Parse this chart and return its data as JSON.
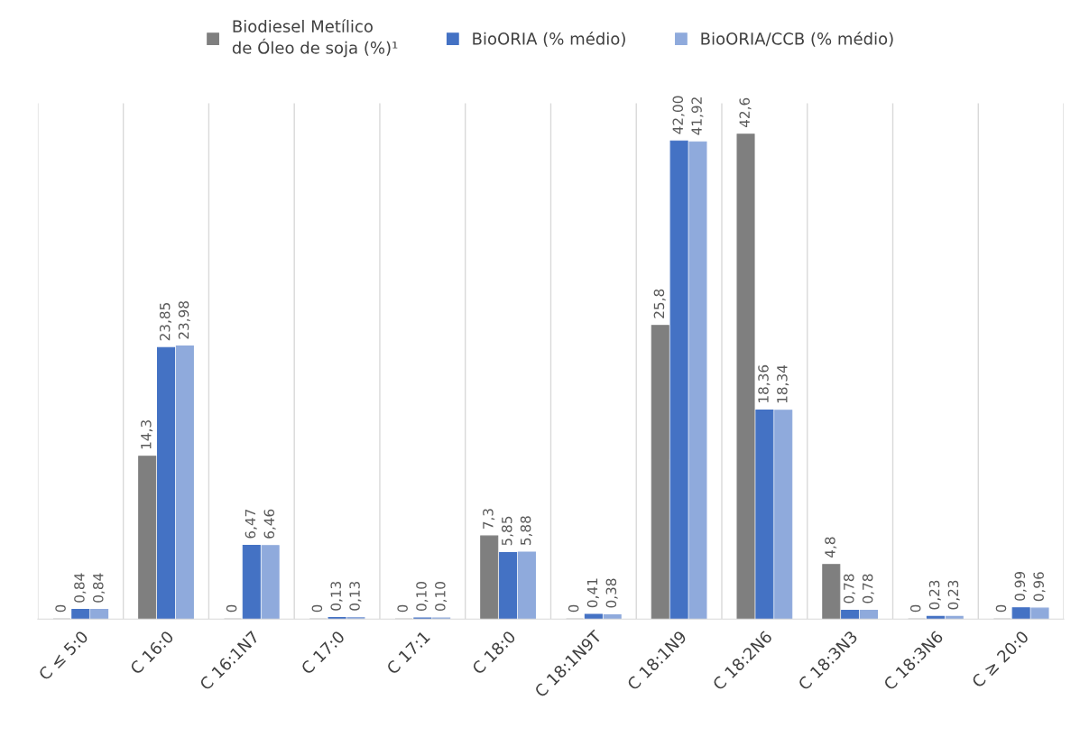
{
  "chart_data": {
    "type": "bar",
    "categories": [
      "C ≤ 5:0",
      "C 16:0",
      "C 16:1N7",
      "C 17:0",
      "C 17:1",
      "C 18:0",
      "C 18:1N9T",
      "C 18:1N9",
      "C 18:2N6",
      "C 18:3N3",
      "C 18:3N6",
      "C ≥ 20:0"
    ],
    "series": [
      {
        "name": "Biodiesel Metílico\nde Óleo de soja (%)¹",
        "color": "#7f7f7f",
        "values": [
          0,
          14.3,
          0,
          0,
          0,
          7.3,
          0,
          25.8,
          42.6,
          4.8,
          0,
          0
        ],
        "value_labels": [
          "0",
          "14,3",
          "0",
          "0",
          "0",
          "7,3",
          "0",
          "25,8",
          "42,6",
          "4,8",
          "0",
          "0"
        ]
      },
      {
        "name": "BioORIA (% médio)",
        "color": "#4472c4",
        "values": [
          0.84,
          23.85,
          6.47,
          0.13,
          0.1,
          5.85,
          0.41,
          42.0,
          18.36,
          0.78,
          0.23,
          0.99
        ],
        "value_labels": [
          "0,84",
          "23,85",
          "6,47",
          "0,13",
          "0,10",
          "5,85",
          "0,41",
          "42,00",
          "18,36",
          "0,78",
          "0,23",
          "0,99"
        ]
      },
      {
        "name": "BioORIA/CCB (% médio)",
        "color": "#8faadc",
        "values": [
          0.84,
          23.98,
          6.46,
          0.13,
          0.1,
          5.88,
          0.38,
          41.92,
          18.34,
          0.78,
          0.23,
          0.96
        ],
        "value_labels": [
          "0,84",
          "23,98",
          "6,46",
          "0,13",
          "0,10",
          "5,88",
          "0,38",
          "41,92",
          "18,34",
          "0,78",
          "0,23",
          "0,96"
        ]
      }
    ],
    "grid": "x",
    "legend": "top"
  }
}
